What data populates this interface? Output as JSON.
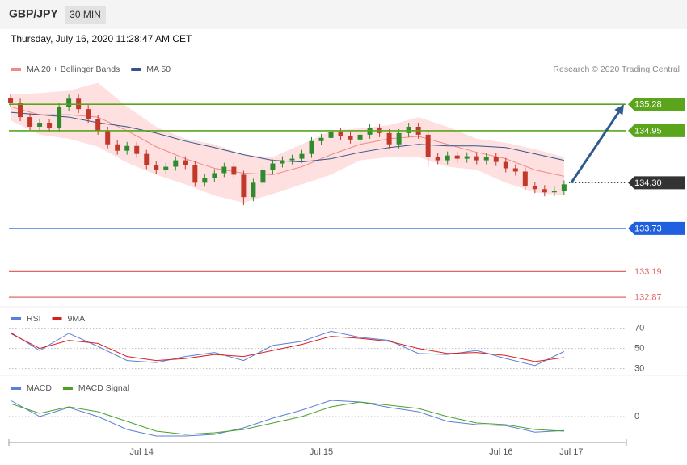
{
  "header": {
    "symbol": "GBP/JPY",
    "interval": "30 MIN",
    "timestamp": "Thursday, July 16, 2020 11:28:47 AM CET"
  },
  "chart_data": [
    {
      "type": "candlestick",
      "credit": "Research © 2020 Trading Central",
      "xlim": [
        -0.17,
        63.42
      ],
      "xticks": [
        {
          "value": 13.5,
          "label": "Jul 14"
        },
        {
          "value": 32,
          "label": "Jul 15"
        },
        {
          "value": 50.5,
          "label": "Jul 16"
        },
        {
          "value": 57.75,
          "label": "Jul 17"
        }
      ],
      "ylim": [
        132.77,
        136.18
      ],
      "up_color": "#2e8b2e",
      "down_color": "#c0392b",
      "open": [
        135.36,
        135.3,
        135.12,
        135.0,
        135.05,
        134.98,
        135.25,
        135.35,
        135.22,
        135.1,
        134.95,
        134.78,
        134.7,
        134.76,
        134.66,
        134.52,
        134.46,
        134.5,
        134.58,
        134.52,
        134.3,
        134.36,
        134.42,
        134.5,
        134.4,
        134.12,
        134.3,
        134.46,
        134.54,
        134.58,
        134.6,
        134.66,
        134.82,
        134.86,
        134.94,
        134.88,
        134.84,
        134.9,
        134.98,
        134.92,
        134.78,
        134.92,
        135.0,
        134.9,
        134.62,
        134.58,
        134.64,
        134.6,
        134.63,
        134.58,
        134.62,
        134.56,
        134.48,
        134.44,
        134.26,
        134.22,
        134.18,
        134.2
      ],
      "high": [
        135.41,
        135.35,
        135.17,
        135.1,
        135.1,
        135.3,
        135.4,
        135.4,
        135.27,
        135.15,
        135.0,
        134.83,
        134.81,
        134.81,
        134.71,
        134.57,
        134.55,
        134.63,
        134.63,
        134.57,
        134.41,
        134.47,
        134.55,
        134.55,
        134.45,
        134.35,
        134.51,
        134.59,
        134.63,
        134.65,
        134.71,
        134.87,
        134.91,
        134.99,
        134.99,
        134.93,
        134.95,
        135.03,
        135.03,
        134.97,
        134.97,
        135.05,
        135.05,
        134.95,
        134.67,
        134.69,
        134.69,
        134.68,
        134.68,
        134.67,
        134.67,
        134.61,
        134.53,
        134.49,
        134.31,
        134.27,
        134.25,
        134.33
      ],
      "low": [
        135.25,
        135.07,
        134.95,
        134.95,
        134.93,
        134.93,
        135.2,
        135.17,
        135.05,
        134.9,
        134.73,
        134.65,
        134.65,
        134.61,
        134.47,
        134.41,
        134.41,
        134.45,
        134.47,
        134.25,
        134.25,
        134.31,
        134.37,
        134.35,
        134.02,
        134.07,
        134.25,
        134.41,
        134.49,
        134.53,
        134.55,
        134.61,
        134.77,
        134.81,
        134.83,
        134.79,
        134.79,
        134.85,
        134.87,
        134.73,
        134.73,
        134.87,
        134.85,
        134.5,
        134.53,
        134.53,
        134.55,
        134.55,
        134.53,
        134.53,
        134.51,
        134.43,
        134.39,
        134.21,
        134.17,
        134.13,
        134.13,
        134.15
      ],
      "close": [
        135.3,
        135.12,
        135.0,
        135.05,
        134.98,
        135.25,
        135.35,
        135.22,
        135.1,
        134.95,
        134.78,
        134.7,
        134.76,
        134.66,
        134.52,
        134.46,
        134.5,
        134.58,
        134.52,
        134.3,
        134.36,
        134.42,
        134.5,
        134.4,
        134.12,
        134.3,
        134.46,
        134.54,
        134.58,
        134.6,
        134.66,
        134.82,
        134.86,
        134.94,
        134.88,
        134.84,
        134.9,
        134.98,
        134.92,
        134.78,
        134.92,
        135.0,
        134.9,
        134.62,
        134.58,
        134.64,
        134.6,
        134.63,
        134.58,
        134.62,
        134.56,
        134.48,
        134.44,
        134.26,
        134.22,
        134.18,
        134.2,
        134.28
      ],
      "overlays": [
        {
          "name": "MA 20 + Bollinger Bands",
          "color": "#f08a8a",
          "band_color": "#ffe0e0",
          "x": [
            0,
            3,
            6,
            9,
            12,
            15,
            18,
            21,
            24,
            27,
            30,
            33,
            36,
            39,
            42,
            45,
            48,
            51,
            54,
            57
          ],
          "values": [
            135.25,
            135.15,
            135.15,
            135.12,
            134.95,
            134.75,
            134.6,
            134.48,
            134.42,
            134.4,
            134.5,
            134.65,
            134.78,
            134.85,
            134.88,
            134.78,
            134.68,
            134.6,
            134.46,
            134.38
          ],
          "upper": [
            135.4,
            135.42,
            135.45,
            135.55,
            135.25,
            135.0,
            134.85,
            134.78,
            134.65,
            134.62,
            134.78,
            134.95,
            134.98,
            135.02,
            135.12,
            135.0,
            134.85,
            134.8,
            134.72,
            134.62
          ],
          "lower": [
            135.08,
            134.9,
            134.85,
            134.75,
            134.55,
            134.4,
            134.28,
            134.14,
            134.05,
            134.16,
            134.28,
            134.4,
            134.58,
            134.62,
            134.62,
            134.5,
            134.46,
            134.3,
            134.18,
            134.14
          ]
        },
        {
          "name": "MA 50",
          "color": "#34558b",
          "x": [
            0,
            3,
            6,
            9,
            12,
            15,
            18,
            21,
            24,
            27,
            30,
            33,
            36,
            39,
            42,
            45,
            48,
            51,
            54,
            57
          ],
          "values": [
            135.18,
            135.15,
            135.12,
            135.05,
            135.0,
            134.92,
            134.82,
            134.74,
            134.65,
            134.58,
            134.56,
            134.6,
            134.68,
            134.74,
            134.78,
            134.76,
            134.76,
            134.74,
            134.66,
            134.58
          ]
        }
      ],
      "levels": [
        {
          "value": 135.28,
          "color": "#5aa51c",
          "tag": true
        },
        {
          "value": 134.95,
          "color": "#5aa51c",
          "tag": true
        },
        {
          "value": 134.3,
          "label": "134.30",
          "color": "#333333",
          "tag": true,
          "dashed": true
        },
        {
          "value": 133.73,
          "color": "#1f5fe0",
          "tag": true
        },
        {
          "value": 133.19,
          "color": "#e06666",
          "tag": false
        },
        {
          "value": 132.87,
          "color": "#e06666",
          "tag": false
        }
      ],
      "projection": {
        "from": 134.3,
        "to": 135.28,
        "color": "#2f5b8f"
      }
    },
    {
      "type": "line",
      "xlim": [
        -0.17,
        63.42
      ],
      "x": [
        0,
        3,
        6,
        9,
        12,
        15,
        18,
        21,
        24,
        27,
        30,
        33,
        36,
        39,
        42,
        45,
        48,
        51,
        54,
        57
      ],
      "ylim": [
        25.7,
        87.3
      ],
      "yticks": [
        30,
        50,
        70
      ],
      "grid": true,
      "series": [
        {
          "name": "RSI",
          "color": "#5b7fd6",
          "values": [
            66,
            48,
            65,
            52,
            38,
            36,
            42,
            46,
            38,
            53,
            57,
            67,
            61,
            58,
            45,
            44,
            48,
            40,
            33,
            47
          ]
        },
        {
          "name": "9MA",
          "color": "#d62020",
          "values": [
            65,
            50,
            58,
            55,
            42,
            38,
            40,
            44,
            42,
            48,
            54,
            62,
            60,
            57,
            50,
            45,
            46,
            43,
            37,
            41
          ]
        }
      ]
    },
    {
      "type": "line",
      "xlim": [
        -0.17,
        63.42
      ],
      "x": [
        0,
        3,
        6,
        9,
        12,
        15,
        18,
        21,
        24,
        27,
        30,
        33,
        36,
        39,
        42,
        45,
        48,
        51,
        54,
        57
      ],
      "ylim": [
        -0.08,
        0.12
      ],
      "yticks": [
        0
      ],
      "grid": true,
      "series": [
        {
          "name": "MACD",
          "color": "#5b7fd6",
          "values": [
            0.05,
            0,
            0.028,
            0,
            -0.04,
            -0.06,
            -0.06,
            -0.055,
            -0.035,
            -0.005,
            0.02,
            0.05,
            0.045,
            0.028,
            0.015,
            -0.015,
            -0.025,
            -0.028,
            -0.048,
            -0.043
          ]
        },
        {
          "name": "MACD Signal",
          "color": "#4aa02a",
          "values": [
            0.04,
            0.01,
            0.03,
            0.015,
            -0.015,
            -0.045,
            -0.055,
            -0.05,
            -0.04,
            -0.02,
            0,
            0.03,
            0.045,
            0.035,
            0.025,
            0,
            -0.02,
            -0.025,
            -0.04,
            -0.045
          ]
        }
      ]
    }
  ]
}
